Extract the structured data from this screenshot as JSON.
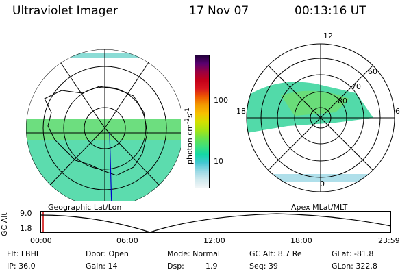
{
  "header": {
    "instrument": "Ultraviolet Imager",
    "date": "17 Nov 07",
    "time": "00:13:16 UT"
  },
  "colorbar": {
    "label": "photon cm-2s-1",
    "label_main": "photon cm",
    "label_exp1": "-2",
    "label_mid": "s",
    "label_exp2": "-1",
    "ticks": [
      "100",
      "10"
    ],
    "colors": [
      "#f2f6f7",
      "#cfe9ee",
      "#9ad9e5",
      "#44c8d3",
      "#14d8a6",
      "#3fe07b",
      "#6ae24a",
      "#a7e414",
      "#d4e000",
      "#f7c000",
      "#f29a00",
      "#ef5a00",
      "#d8151e",
      "#c4001a",
      "#9c0040",
      "#5a0070",
      "#22003b"
    ]
  },
  "left_map": {
    "caption": "Geographic Lat/Lon"
  },
  "right_map": {
    "caption": "Apex MLat/MLT",
    "lat_labels": [
      "60",
      "70",
      "80"
    ],
    "mlt_labels": [
      "12",
      "18",
      "6",
      "0"
    ]
  },
  "altitude_plot": {
    "ylabel": "GC Alt",
    "y_ticks": [
      "9.0",
      "1.8"
    ],
    "x_ticks": [
      "00:00",
      "06:00",
      "12:00",
      "18:00",
      "23:59"
    ]
  },
  "status": {
    "filter": "Flt: LBHL",
    "ip": "IP: 36.0",
    "door": "Door: Open",
    "gain": "Gain: 14",
    "mode": "Mode: Normal",
    "dsp_label": "Dsp:",
    "dsp_value": "1.9",
    "gc_alt": "GC Alt: 8.7 Re",
    "seq": "Seq: 39",
    "glat": "GLat: -81.8",
    "glon": "GLon: 322.8"
  }
}
